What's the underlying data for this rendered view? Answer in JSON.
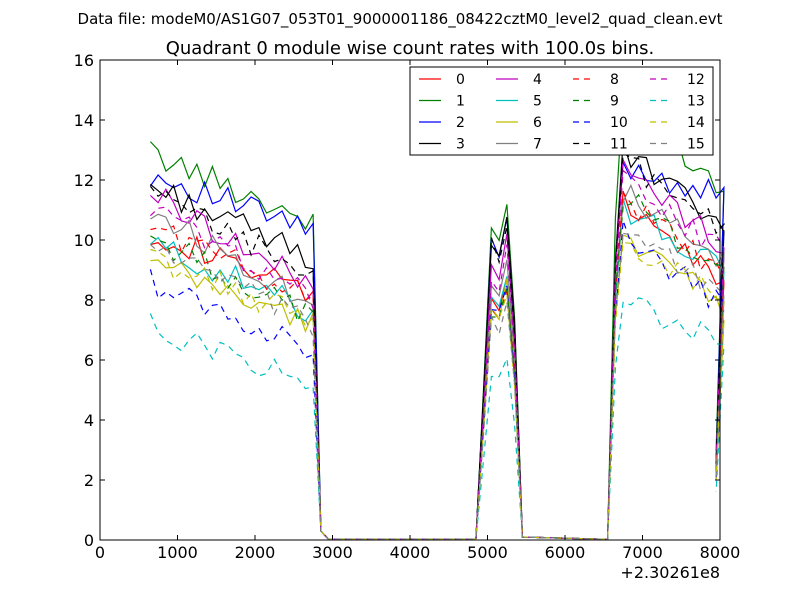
{
  "chart_data": {
    "type": "line",
    "suptitle": "Data file: modeM0/AS1G07_053T01_9000001186_08422cztM0_level2_quad_clean.evt",
    "title": "Quadrant 0 module wise count rates with 100.0s bins.",
    "xlabel": "",
    "ylabel": "",
    "x_offset_label": "+2.30261e8",
    "xlim": [
      0,
      8000
    ],
    "ylim": [
      0,
      16
    ],
    "xticks": [
      0,
      1000,
      2000,
      3000,
      4000,
      5000,
      6000,
      7000,
      8000
    ],
    "yticks": [
      0,
      2,
      4,
      6,
      8,
      10,
      12,
      14,
      16
    ],
    "legend_position": "top-right",
    "segments": [
      {
        "x_start": 650,
        "x_end": 2850,
        "step": 100
      },
      {
        "x_start": 4850,
        "x_end": 5450,
        "step": 100
      },
      {
        "x_start": 6550,
        "x_end": 7950,
        "step": 100
      }
    ],
    "series": [
      {
        "name": "0",
        "color": "#ff0000",
        "dash": "solid",
        "base": 10.3,
        "slope": -2.2,
        "peak": 8.8,
        "level2": 11.2,
        "slope2": -2.6
      },
      {
        "name": "1",
        "color": "#008000",
        "dash": "solid",
        "base": 12.9,
        "slope": -2.3,
        "peak": 11.3,
        "level2": 14.9,
        "slope2": -3.3
      },
      {
        "name": "2",
        "color": "#0000ff",
        "dash": "solid",
        "base": 12.2,
        "slope": -1.9,
        "peak": 10.7,
        "level2": 12.5,
        "slope2": -1.1
      },
      {
        "name": "3",
        "color": "#000000",
        "dash": "solid",
        "base": 11.8,
        "slope": -2.4,
        "peak": 10.9,
        "level2": 12.9,
        "slope2": -2.5
      },
      {
        "name": "4",
        "color": "#bf00bf",
        "dash": "solid",
        "base": 11.6,
        "slope": -3.2,
        "peak": 10.0,
        "level2": 12.4,
        "slope2": -2.6
      },
      {
        "name": "5",
        "color": "#00bfbf",
        "dash": "solid",
        "base": 9.9,
        "slope": -2.3,
        "peak": 9.0,
        "level2": 11.1,
        "slope2": -2.2
      },
      {
        "name": "6",
        "color": "#bfbf00",
        "dash": "solid",
        "base": 9.2,
        "slope": -2.0,
        "peak": 8.6,
        "level2": 10.3,
        "slope2": -2.6
      },
      {
        "name": "7",
        "color": "#808080",
        "dash": "solid",
        "base": 11.0,
        "slope": -3.1,
        "peak": 9.4,
        "level2": 11.6,
        "slope2": -2.5
      },
      {
        "name": "8",
        "color": "#ff0000",
        "dash": "dashed",
        "base": 10.5,
        "slope": -2.4,
        "peak": 8.5,
        "level2": 11.4,
        "slope2": -2.6
      },
      {
        "name": "9",
        "color": "#008000",
        "dash": "dashed",
        "base": 10.1,
        "slope": -2.7,
        "peak": 8.3,
        "level2": 11.5,
        "slope2": -2.6
      },
      {
        "name": "10",
        "color": "#0000ff",
        "dash": "dashed",
        "base": 8.6,
        "slope": -2.3,
        "peak": 8.6,
        "level2": 10.2,
        "slope2": -2.5
      },
      {
        "name": "11",
        "color": "#000000",
        "dash": "dashed",
        "base": 11.5,
        "slope": -2.6,
        "peak": 10.7,
        "level2": 12.7,
        "slope2": -2.3
      },
      {
        "name": "12",
        "color": "#bf00bf",
        "dash": "dashed",
        "base": 11.1,
        "slope": -3.0,
        "peak": 9.6,
        "level2": 12.0,
        "slope2": -2.4
      },
      {
        "name": "13",
        "color": "#00bfbf",
        "dash": "dashed",
        "base": 7.1,
        "slope": -1.9,
        "peak": 6.0,
        "level2": 8.0,
        "slope2": -1.5
      },
      {
        "name": "14",
        "color": "#bfbf00",
        "dash": "dashed",
        "base": 9.4,
        "slope": -2.1,
        "peak": 8.2,
        "level2": 10.0,
        "slope2": -1.9
      },
      {
        "name": "15",
        "color": "#808080",
        "dash": "dashed",
        "base": 9.9,
        "slope": -2.8,
        "peak": 7.9,
        "level2": 10.6,
        "slope2": -2.5
      }
    ]
  }
}
